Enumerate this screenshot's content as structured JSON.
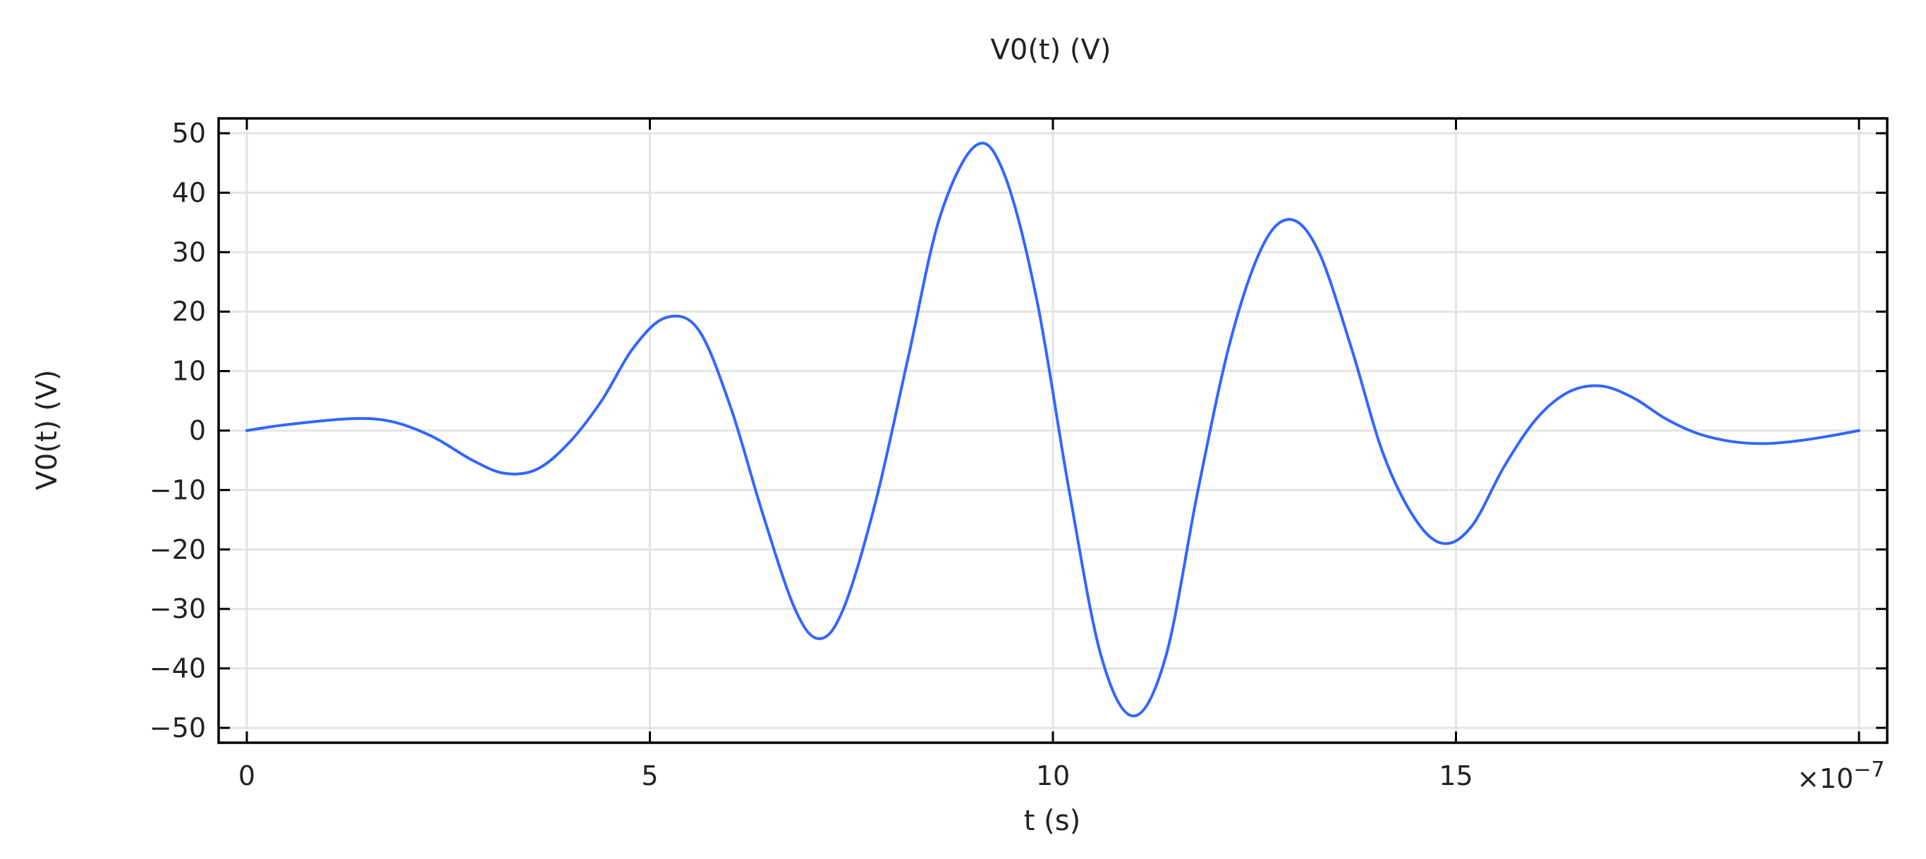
{
  "chart_data": {
    "type": "line",
    "title": "V0(t) (V)",
    "xlabel": "t (s)",
    "ylabel": "V0(t) (V)",
    "x_multiplier_label": "×10",
    "x_multiplier_exponent": "−7",
    "xlim": [
      -0.35,
      20.35
    ],
    "ylim": [
      -52.5,
      52.5
    ],
    "x_ticks": [
      0,
      5,
      10,
      15,
      20
    ],
    "x_tick_labels": [
      "0",
      "5",
      "10",
      "15",
      ""
    ],
    "y_ticks": [
      50,
      40,
      30,
      20,
      10,
      0,
      -10,
      -20,
      -30,
      -40,
      -50
    ],
    "y_tick_labels": [
      "50",
      "40",
      "30",
      "20",
      "10",
      "0",
      "−10",
      "−20",
      "−30",
      "−40",
      "−50"
    ],
    "grid": true,
    "line_color": "#3366ff",
    "series": [
      {
        "points": [
          [
            0.0,
            0.0
          ],
          [
            0.5,
            1.0
          ],
          [
            1.3,
            2.0
          ],
          [
            1.8,
            1.5
          ],
          [
            2.3,
            -1.0
          ],
          [
            2.8,
            -5.0
          ],
          [
            3.2,
            -7.2
          ],
          [
            3.6,
            -6.5
          ],
          [
            4.0,
            -2.0
          ],
          [
            4.4,
            5.0
          ],
          [
            4.8,
            14.0
          ],
          [
            5.2,
            19.0
          ],
          [
            5.6,
            17.0
          ],
          [
            6.0,
            4.0
          ],
          [
            6.4,
            -14.0
          ],
          [
            6.8,
            -30.0
          ],
          [
            7.1,
            -35.0
          ],
          [
            7.4,
            -30.0
          ],
          [
            7.8,
            -12.0
          ],
          [
            8.2,
            12.0
          ],
          [
            8.6,
            36.0
          ],
          [
            9.05,
            48.0
          ],
          [
            9.4,
            43.0
          ],
          [
            9.8,
            22.0
          ],
          [
            10.2,
            -10.0
          ],
          [
            10.6,
            -38.0
          ],
          [
            11.0,
            -48.0
          ],
          [
            11.4,
            -38.0
          ],
          [
            11.8,
            -10.0
          ],
          [
            12.2,
            15.0
          ],
          [
            12.6,
            31.0
          ],
          [
            12.95,
            35.5
          ],
          [
            13.3,
            30.0
          ],
          [
            13.7,
            14.0
          ],
          [
            14.1,
            -4.0
          ],
          [
            14.5,
            -15.0
          ],
          [
            14.85,
            -19.0
          ],
          [
            15.2,
            -16.0
          ],
          [
            15.6,
            -6.0
          ],
          [
            16.0,
            2.0
          ],
          [
            16.4,
            6.5
          ],
          [
            16.8,
            7.5
          ],
          [
            17.2,
            5.5
          ],
          [
            17.6,
            2.0
          ],
          [
            18.0,
            -0.5
          ],
          [
            18.4,
            -1.8
          ],
          [
            18.8,
            -2.2
          ],
          [
            19.2,
            -1.8
          ],
          [
            19.6,
            -1.0
          ],
          [
            20.0,
            0.0
          ]
        ]
      }
    ]
  }
}
